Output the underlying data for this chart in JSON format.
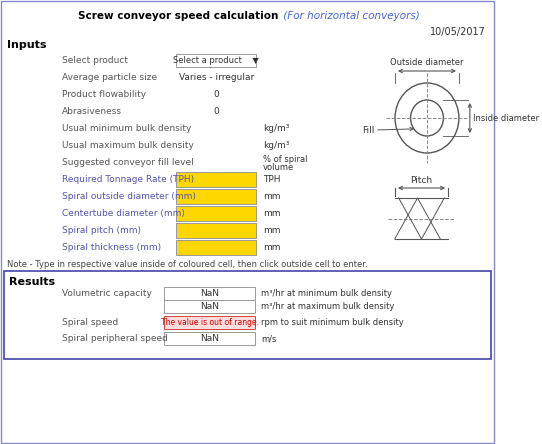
{
  "title_bold": "Screw conveyor speed calculation",
  "title_italic": " (For horizontal conveyors)",
  "date": "10/05/2017",
  "inputs_label": "Inputs",
  "results_label": "Results",
  "input_rows": [
    {
      "label": "Select product",
      "value": "Select a product    ▼",
      "type": "dropdown",
      "unit": ""
    },
    {
      "label": "Average particle size",
      "value": "Varies - irregular",
      "type": "text",
      "unit": ""
    },
    {
      "label": "Product flowability",
      "value": "0",
      "type": "text",
      "unit": ""
    },
    {
      "label": "Abrasiveness",
      "value": "0",
      "type": "text",
      "unit": ""
    },
    {
      "label": "Usual minimum bulk density",
      "value": "",
      "type": "text",
      "unit": "kg/m³"
    },
    {
      "label": "Usual maximum bulk density",
      "value": "",
      "type": "text",
      "unit": "kg/m³"
    },
    {
      "label": "Suggested conveyor fill level",
      "value": "",
      "type": "text",
      "unit": "% of spiral\nvolume"
    },
    {
      "label": "Required Tonnage Rate (TPH)",
      "value": "",
      "type": "yellow",
      "unit": "TPH"
    },
    {
      "label": "Spiral outside diameter (mm)",
      "value": "",
      "type": "yellow",
      "unit": "mm"
    },
    {
      "label": "Centertube diameter (mm)",
      "value": "",
      "type": "yellow",
      "unit": "mm"
    },
    {
      "label": "Spiral pitch (mm)",
      "value": "",
      "type": "yellow",
      "unit": "mm"
    },
    {
      "label": "Spiral thickness (mm)",
      "value": "",
      "type": "yellow",
      "unit": "mm"
    }
  ],
  "note": "Note - Type in respective value inside of coloured cell, then click outside cell to enter.",
  "result_rows": [
    {
      "label": "Volumetric capacity",
      "value1": "NaN",
      "value2": "NaN",
      "unit1": "m³/hr at minimum bulk density",
      "unit2": "m³/hr at maximum bulk density"
    },
    {
      "label": "Spiral speed",
      "value1": "The value is out of range.",
      "unit1": "rpm to suit minimum bulk density",
      "type": "red"
    },
    {
      "label": "Spiral peripheral speed",
      "value1": "NaN",
      "unit1": "m/s"
    }
  ],
  "yellow": "#FFD700",
  "white": "#ffffff",
  "label_color_blue": "#5555aa",
  "label_color_dark": "#555555",
  "text_color": "#333333",
  "border_color": "#999999",
  "results_border": "#4444aa",
  "title_color": "#000000",
  "italic_color": "#4466cc",
  "diagram_color": "#555555",
  "diagram_dash": "#888888"
}
